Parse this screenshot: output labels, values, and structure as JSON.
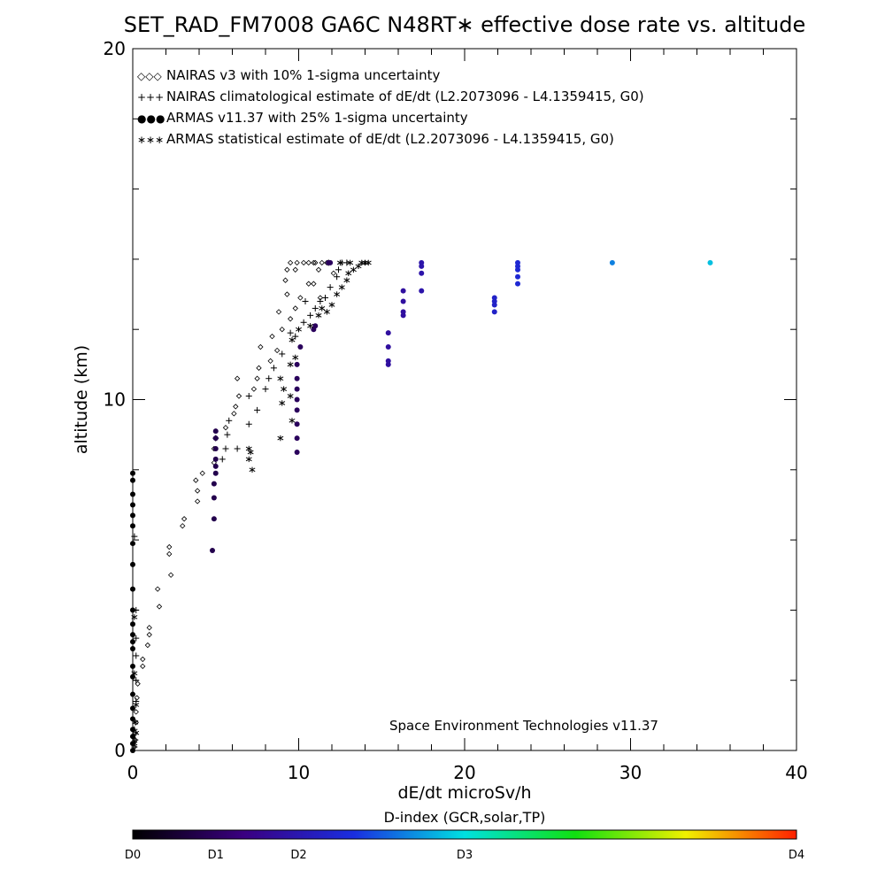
{
  "chart_data": {
    "type": "scatter",
    "title": "SET_RAD_FM7008  GA6C N48RT∗ effective dose rate vs. altitude",
    "xlabel": "dE/dt microSv/h",
    "ylabel": "altitude (km)",
    "xlim": [
      0,
      40
    ],
    "ylim": [
      0,
      20
    ],
    "x_ticks": [
      0,
      10,
      20,
      30,
      40
    ],
    "y_ticks": [
      0,
      10,
      20
    ],
    "credit": "Space Environment Technologies v11.37",
    "legend_placement": "top-left",
    "legend": [
      {
        "symbol": "◇◇◇",
        "label": "NAIRAS v3 with 10% 1-sigma uncertainty",
        "color": "#000000"
      },
      {
        "symbol": "+++",
        "label": "NAIRAS climatological estimate of dE/dt (L2.2073096 - L4.1359415, G0)",
        "color": "#000000"
      },
      {
        "symbol": "●●●",
        "label": "ARMAS v11.37 with 25% 1-sigma uncertainty",
        "color": "#1a2ee0"
      },
      {
        "symbol": "∗∗∗",
        "label": "ARMAS statistical estimate of dE/dt (L2.2073096 - L4.1359415, G0)",
        "color": "#000000"
      }
    ],
    "colorbar": {
      "title": "D-index (GCR,solar,TP)",
      "labels": [
        {
          "text": "D0",
          "pos": 0.0
        },
        {
          "text": "D1",
          "pos": 0.125
        },
        {
          "text": "D2",
          "pos": 0.25
        },
        {
          "text": "D3",
          "pos": 0.5
        },
        {
          "text": "D4",
          "pos": 1.0
        }
      ],
      "stops": [
        "#000000",
        "#3a0080",
        "#1a2ee0",
        "#00e0e0",
        "#10e010",
        "#f0f000",
        "#ff2000"
      ]
    },
    "series": [
      {
        "name": "NAIRAS v3 with 10% 1-sigma uncertainty",
        "marker": "diamond",
        "points": [
          [
            0.1,
            0.1
          ],
          [
            0.15,
            0.3
          ],
          [
            0.15,
            0.5
          ],
          [
            0.2,
            0.8
          ],
          [
            0.2,
            1.1
          ],
          [
            0.25,
            1.5
          ],
          [
            0.3,
            1.9
          ],
          [
            0.6,
            2.4
          ],
          [
            0.6,
            2.6
          ],
          [
            0.9,
            3.0
          ],
          [
            1.0,
            3.3
          ],
          [
            1.0,
            3.5
          ],
          [
            1.6,
            4.1
          ],
          [
            1.5,
            4.6
          ],
          [
            2.3,
            5.0
          ],
          [
            2.2,
            5.6
          ],
          [
            2.2,
            5.8
          ],
          [
            3.0,
            6.4
          ],
          [
            3.1,
            6.6
          ],
          [
            3.9,
            7.1
          ],
          [
            3.9,
            7.4
          ],
          [
            3.8,
            7.7
          ],
          [
            4.2,
            7.9
          ],
          [
            4.9,
            8.2
          ],
          [
            4.9,
            8.6
          ],
          [
            5.0,
            8.9
          ],
          [
            5.6,
            9.2
          ],
          [
            6.1,
            9.6
          ],
          [
            6.2,
            9.8
          ],
          [
            6.4,
            10.1
          ],
          [
            7.3,
            10.3
          ],
          [
            7.5,
            10.6
          ],
          [
            6.3,
            10.6
          ],
          [
            7.6,
            10.9
          ],
          [
            8.3,
            11.1
          ],
          [
            8.7,
            11.4
          ],
          [
            7.7,
            11.5
          ],
          [
            8.4,
            11.8
          ],
          [
            9.0,
            12.0
          ],
          [
            9.5,
            12.3
          ],
          [
            8.8,
            12.5
          ],
          [
            9.8,
            12.6
          ],
          [
            10.1,
            12.9
          ],
          [
            9.3,
            13.0
          ],
          [
            10.6,
            13.3
          ],
          [
            9.2,
            13.4
          ],
          [
            9.8,
            13.7
          ],
          [
            10.9,
            13.9
          ],
          [
            11.2,
            13.7
          ],
          [
            10.9,
            13.3
          ],
          [
            11.3,
            12.9
          ],
          [
            9.3,
            13.7
          ],
          [
            9.5,
            13.9
          ],
          [
            9.9,
            13.9
          ],
          [
            10.3,
            13.9
          ],
          [
            10.6,
            13.9
          ],
          [
            11.0,
            13.9
          ],
          [
            11.4,
            13.9
          ],
          [
            11.7,
            13.9
          ],
          [
            12.1,
            13.6
          ]
        ]
      },
      {
        "name": "NAIRAS climatological estimate of dE/dt (L2.2073096 - L4.1359415, G0)",
        "marker": "plus",
        "points": [
          [
            0.1,
            0.1
          ],
          [
            0.15,
            0.3
          ],
          [
            0.1,
            0.6
          ],
          [
            0.2,
            1.4
          ],
          [
            0.2,
            2.0
          ],
          [
            0.2,
            2.7
          ],
          [
            0.2,
            3.2
          ],
          [
            0.2,
            4.0
          ],
          [
            0.1,
            6.1
          ],
          [
            5.4,
            8.3
          ],
          [
            5.6,
            8.6
          ],
          [
            5.7,
            9.0
          ],
          [
            5.8,
            9.4
          ],
          [
            5.0,
            8.9
          ],
          [
            6.3,
            8.6
          ],
          [
            7.0,
            9.3
          ],
          [
            7.5,
            9.7
          ],
          [
            7.0,
            10.1
          ],
          [
            8.0,
            10.3
          ],
          [
            8.2,
            10.6
          ],
          [
            8.5,
            10.9
          ],
          [
            9.0,
            11.3
          ],
          [
            9.8,
            11.8
          ],
          [
            9.5,
            11.9
          ],
          [
            10.3,
            12.2
          ],
          [
            10.7,
            12.4
          ],
          [
            11.0,
            12.6
          ],
          [
            10.4,
            12.8
          ],
          [
            11.3,
            12.8
          ],
          [
            11.6,
            12.9
          ],
          [
            11.9,
            13.2
          ],
          [
            12.3,
            13.5
          ],
          [
            12.4,
            13.7
          ],
          [
            12.6,
            13.9
          ],
          [
            11.8,
            13.9
          ],
          [
            12.9,
            13.9
          ]
        ]
      },
      {
        "name": "ARMAS v11.37 with 25% 1-sigma uncertainty",
        "marker": "dot",
        "points": [
          [
            0.0,
            0.0,
            0.0
          ],
          [
            0.0,
            0.2,
            0.0
          ],
          [
            0.0,
            0.4,
            0.0
          ],
          [
            0.0,
            0.6,
            0.0
          ],
          [
            0.0,
            0.9,
            0.0
          ],
          [
            0.0,
            1.2,
            0.0
          ],
          [
            0.0,
            1.6,
            0.0
          ],
          [
            0.0,
            2.1,
            0.0
          ],
          [
            0.0,
            2.4,
            0.0
          ],
          [
            0.0,
            2.9,
            0.0
          ],
          [
            0.0,
            3.1,
            0.0
          ],
          [
            0.0,
            3.3,
            0.0
          ],
          [
            0.0,
            3.6,
            0.0
          ],
          [
            0.0,
            4.0,
            0.0
          ],
          [
            0.0,
            4.6,
            0.0
          ],
          [
            0.0,
            5.3,
            0.0
          ],
          [
            0.0,
            5.9,
            0.0
          ],
          [
            0.0,
            6.4,
            0.0
          ],
          [
            0.0,
            6.7,
            0.0
          ],
          [
            0.0,
            7.0,
            0.0
          ],
          [
            0.0,
            7.3,
            0.0
          ],
          [
            0.0,
            7.7,
            0.0
          ],
          [
            0.0,
            7.9,
            0.0
          ],
          [
            4.8,
            5.7,
            0.1
          ],
          [
            4.9,
            6.6,
            0.1
          ],
          [
            4.9,
            7.2,
            0.1
          ],
          [
            4.9,
            7.6,
            0.1
          ],
          [
            5.0,
            7.9,
            0.1
          ],
          [
            5.0,
            8.1,
            0.1
          ],
          [
            5.0,
            8.3,
            0.1
          ],
          [
            5.0,
            8.6,
            0.1
          ],
          [
            5.0,
            8.9,
            0.1
          ],
          [
            5.0,
            9.1,
            0.1
          ],
          [
            9.9,
            8.5,
            0.12
          ],
          [
            9.9,
            8.9,
            0.12
          ],
          [
            9.9,
            9.3,
            0.12
          ],
          [
            9.9,
            9.7,
            0.12
          ],
          [
            9.9,
            10.0,
            0.12
          ],
          [
            9.9,
            10.3,
            0.12
          ],
          [
            9.9,
            10.6,
            0.12
          ],
          [
            9.9,
            11.0,
            0.12
          ],
          [
            10.1,
            11.5,
            0.12
          ],
          [
            10.9,
            12.0,
            0.12
          ],
          [
            11.0,
            12.1,
            0.12
          ],
          [
            11.8,
            13.9,
            0.12
          ],
          [
            11.9,
            13.9,
            0.12
          ],
          [
            15.4,
            11.0,
            0.22
          ],
          [
            15.4,
            11.1,
            0.22
          ],
          [
            15.4,
            11.5,
            0.22
          ],
          [
            15.4,
            11.9,
            0.22
          ],
          [
            16.3,
            12.4,
            0.22
          ],
          [
            16.3,
            12.5,
            0.22
          ],
          [
            16.3,
            12.8,
            0.22
          ],
          [
            16.3,
            13.1,
            0.22
          ],
          [
            17.4,
            13.1,
            0.24
          ],
          [
            17.4,
            13.6,
            0.24
          ],
          [
            17.4,
            13.8,
            0.24
          ],
          [
            17.4,
            13.9,
            0.24
          ],
          [
            21.8,
            12.5,
            0.29
          ],
          [
            21.8,
            12.7,
            0.29
          ],
          [
            21.8,
            12.8,
            0.29
          ],
          [
            21.8,
            12.9,
            0.29
          ],
          [
            23.2,
            13.3,
            0.31
          ],
          [
            23.2,
            13.5,
            0.31
          ],
          [
            23.2,
            13.7,
            0.31
          ],
          [
            23.2,
            13.8,
            0.31
          ],
          [
            23.2,
            13.9,
            0.31
          ],
          [
            28.9,
            13.9,
            0.41
          ],
          [
            34.8,
            13.9,
            0.47
          ]
        ]
      },
      {
        "name": "ARMAS statistical estimate of dE/dt (L2.2073096 - L4.1359415, G0)",
        "marker": "asterisk",
        "points": [
          [
            0.1,
            0.2
          ],
          [
            0.2,
            0.5
          ],
          [
            0.15,
            0.8
          ],
          [
            0.2,
            1.3
          ],
          [
            0.1,
            2.2
          ],
          [
            0.1,
            3.8
          ],
          [
            7.2,
            8.0
          ],
          [
            7.0,
            8.3
          ],
          [
            7.1,
            8.5
          ],
          [
            7.0,
            8.6
          ],
          [
            8.9,
            8.9
          ],
          [
            9.6,
            9.4
          ],
          [
            9.0,
            9.9
          ],
          [
            9.5,
            10.1
          ],
          [
            9.1,
            10.3
          ],
          [
            8.9,
            10.6
          ],
          [
            9.5,
            11.0
          ],
          [
            9.8,
            11.2
          ],
          [
            9.6,
            11.7
          ],
          [
            10.0,
            12.0
          ],
          [
            10.7,
            12.1
          ],
          [
            11.2,
            12.4
          ],
          [
            11.7,
            12.5
          ],
          [
            11.4,
            12.6
          ],
          [
            12.0,
            12.7
          ],
          [
            12.3,
            13.0
          ],
          [
            12.6,
            13.2
          ],
          [
            12.9,
            13.4
          ],
          [
            13.0,
            13.6
          ],
          [
            13.3,
            13.7
          ],
          [
            13.6,
            13.8
          ],
          [
            14.0,
            13.9
          ],
          [
            13.1,
            13.9
          ],
          [
            12.5,
            13.9
          ],
          [
            13.8,
            13.9
          ],
          [
            14.2,
            13.9
          ]
        ]
      }
    ]
  }
}
